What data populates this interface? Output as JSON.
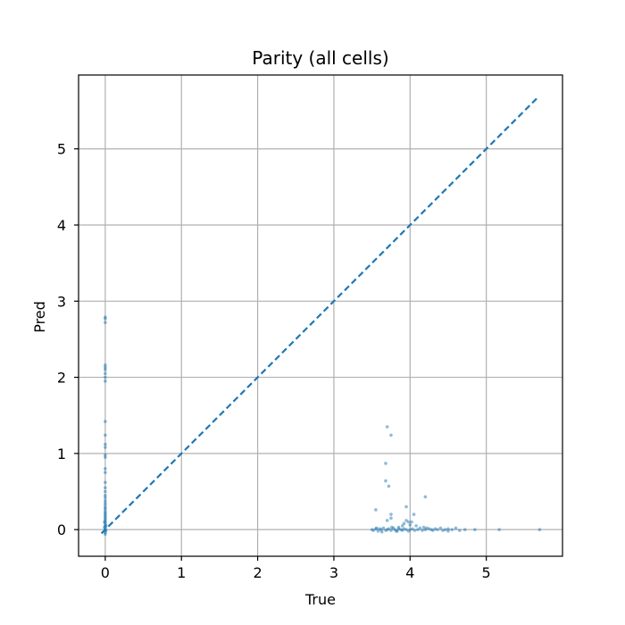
{
  "chart_data": {
    "type": "scatter",
    "title": "Parity (all cells)",
    "xlabel": "True",
    "ylabel": "Pred",
    "xlim": [
      -0.35,
      6.0
    ],
    "ylim": [
      -0.35,
      5.97
    ],
    "xticks": [
      0,
      1,
      2,
      3,
      4,
      5
    ],
    "yticks": [
      0,
      1,
      2,
      3,
      4,
      5
    ],
    "grid": true,
    "colors": {
      "points": "#1f77b4",
      "parity_line": "#1f77b4",
      "grid": "#b0b0b0"
    },
    "parity_line": {
      "style": "dashed",
      "from": [
        -0.05,
        -0.05
      ],
      "to": [
        5.67,
        5.67
      ]
    },
    "series": [
      {
        "points": [
          [
            0.0,
            2.79
          ],
          [
            0.0,
            2.77
          ],
          [
            0.0,
            2.72
          ],
          [
            0.0,
            2.16
          ],
          [
            0.0,
            2.13
          ],
          [
            0.0,
            2.1
          ],
          [
            0.0,
            2.05
          ],
          [
            0.0,
            2.0
          ],
          [
            0.0,
            1.95
          ],
          [
            0.0,
            1.42
          ],
          [
            0.0,
            1.24
          ],
          [
            0.0,
            1.12
          ],
          [
            0.0,
            1.08
          ],
          [
            0.0,
            0.98
          ],
          [
            0.0,
            0.95
          ],
          [
            0.0,
            0.8
          ],
          [
            0.0,
            0.75
          ],
          [
            0.0,
            0.62
          ],
          [
            0.0,
            0.55
          ],
          [
            0.0,
            0.5
          ],
          [
            0.0,
            0.45
          ],
          [
            0.0,
            0.42
          ],
          [
            0.0,
            0.38
          ],
          [
            0.0,
            0.35
          ],
          [
            0.0,
            0.32
          ],
          [
            0.0,
            0.29
          ],
          [
            0.0,
            0.27
          ],
          [
            0.0,
            0.24
          ],
          [
            0.0,
            0.22
          ],
          [
            0.0,
            0.2
          ],
          [
            0.0,
            0.18
          ],
          [
            0.0,
            0.16
          ],
          [
            0.0,
            0.14
          ],
          [
            0.0,
            0.12
          ],
          [
            0.0,
            0.1
          ],
          [
            0.0,
            0.08
          ],
          [
            0.0,
            0.06
          ],
          [
            0.0,
            0.04
          ],
          [
            0.0,
            0.02
          ],
          [
            0.0,
            0.0
          ],
          [
            0.0,
            -0.02
          ],
          [
            0.0,
            -0.04
          ],
          [
            0.0,
            -0.06
          ],
          [
            0.01,
            0.05
          ],
          [
            0.01,
            -0.01
          ],
          [
            -0.01,
            0.03
          ],
          [
            -0.01,
            0.1
          ],
          [
            3.7,
            1.35
          ],
          [
            3.75,
            1.24
          ],
          [
            3.68,
            0.87
          ],
          [
            3.68,
            0.64
          ],
          [
            3.72,
            0.57
          ],
          [
            3.55,
            0.26
          ],
          [
            3.75,
            0.2
          ],
          [
            3.75,
            0.15
          ],
          [
            3.7,
            0.12
          ],
          [
            3.95,
            0.3
          ],
          [
            3.95,
            0.12
          ],
          [
            3.98,
            0.1
          ],
          [
            3.92,
            0.08
          ],
          [
            4.0,
            0.06
          ],
          [
            4.02,
            0.1
          ],
          [
            4.05,
            0.2
          ],
          [
            4.2,
            0.43
          ],
          [
            3.9,
            0.05
          ],
          [
            3.85,
            0.03
          ],
          [
            4.08,
            0.05
          ],
          [
            3.5,
            0.0
          ],
          [
            3.52,
            -0.01
          ],
          [
            3.55,
            0.01
          ],
          [
            3.58,
            -0.02
          ],
          [
            3.6,
            0.01
          ],
          [
            3.62,
            0.0
          ],
          [
            3.65,
            0.02
          ],
          [
            3.68,
            -0.01
          ],
          [
            3.7,
            0.0
          ],
          [
            3.72,
            0.01
          ],
          [
            3.75,
            -0.01
          ],
          [
            3.78,
            0.02
          ],
          [
            3.8,
            0.0
          ],
          [
            3.82,
            -0.02
          ],
          [
            3.85,
            0.01
          ],
          [
            3.88,
            0.0
          ],
          [
            3.9,
            -0.01
          ],
          [
            3.92,
            0.01
          ],
          [
            3.95,
            0.0
          ],
          [
            3.98,
            -0.02
          ],
          [
            4.0,
            0.0
          ],
          [
            4.03,
            0.01
          ],
          [
            4.06,
            -0.01
          ],
          [
            4.1,
            0.0
          ],
          [
            4.13,
            0.02
          ],
          [
            4.16,
            -0.01
          ],
          [
            4.2,
            0.0
          ],
          [
            4.22,
            0.02
          ],
          [
            4.25,
            0.01
          ],
          [
            4.28,
            0.0
          ],
          [
            4.3,
            -0.01
          ],
          [
            4.33,
            0.01
          ],
          [
            4.36,
            0.0
          ],
          [
            4.4,
            0.02
          ],
          [
            4.43,
            -0.01
          ],
          [
            4.46,
            0.0
          ],
          [
            4.5,
            0.01
          ],
          [
            4.55,
            0.0
          ],
          [
            4.6,
            0.02
          ],
          [
            4.65,
            -0.01
          ],
          [
            4.72,
            0.0
          ],
          [
            4.85,
            0.0
          ],
          [
            5.17,
            0.0
          ],
          [
            5.7,
            0.0
          ],
          [
            3.56,
            0.02
          ],
          [
            3.63,
            -0.03
          ],
          [
            3.76,
            0.03
          ],
          [
            3.83,
            -0.02
          ],
          [
            4.18,
            0.03
          ],
          [
            4.5,
            -0.02
          ]
        ]
      }
    ]
  }
}
